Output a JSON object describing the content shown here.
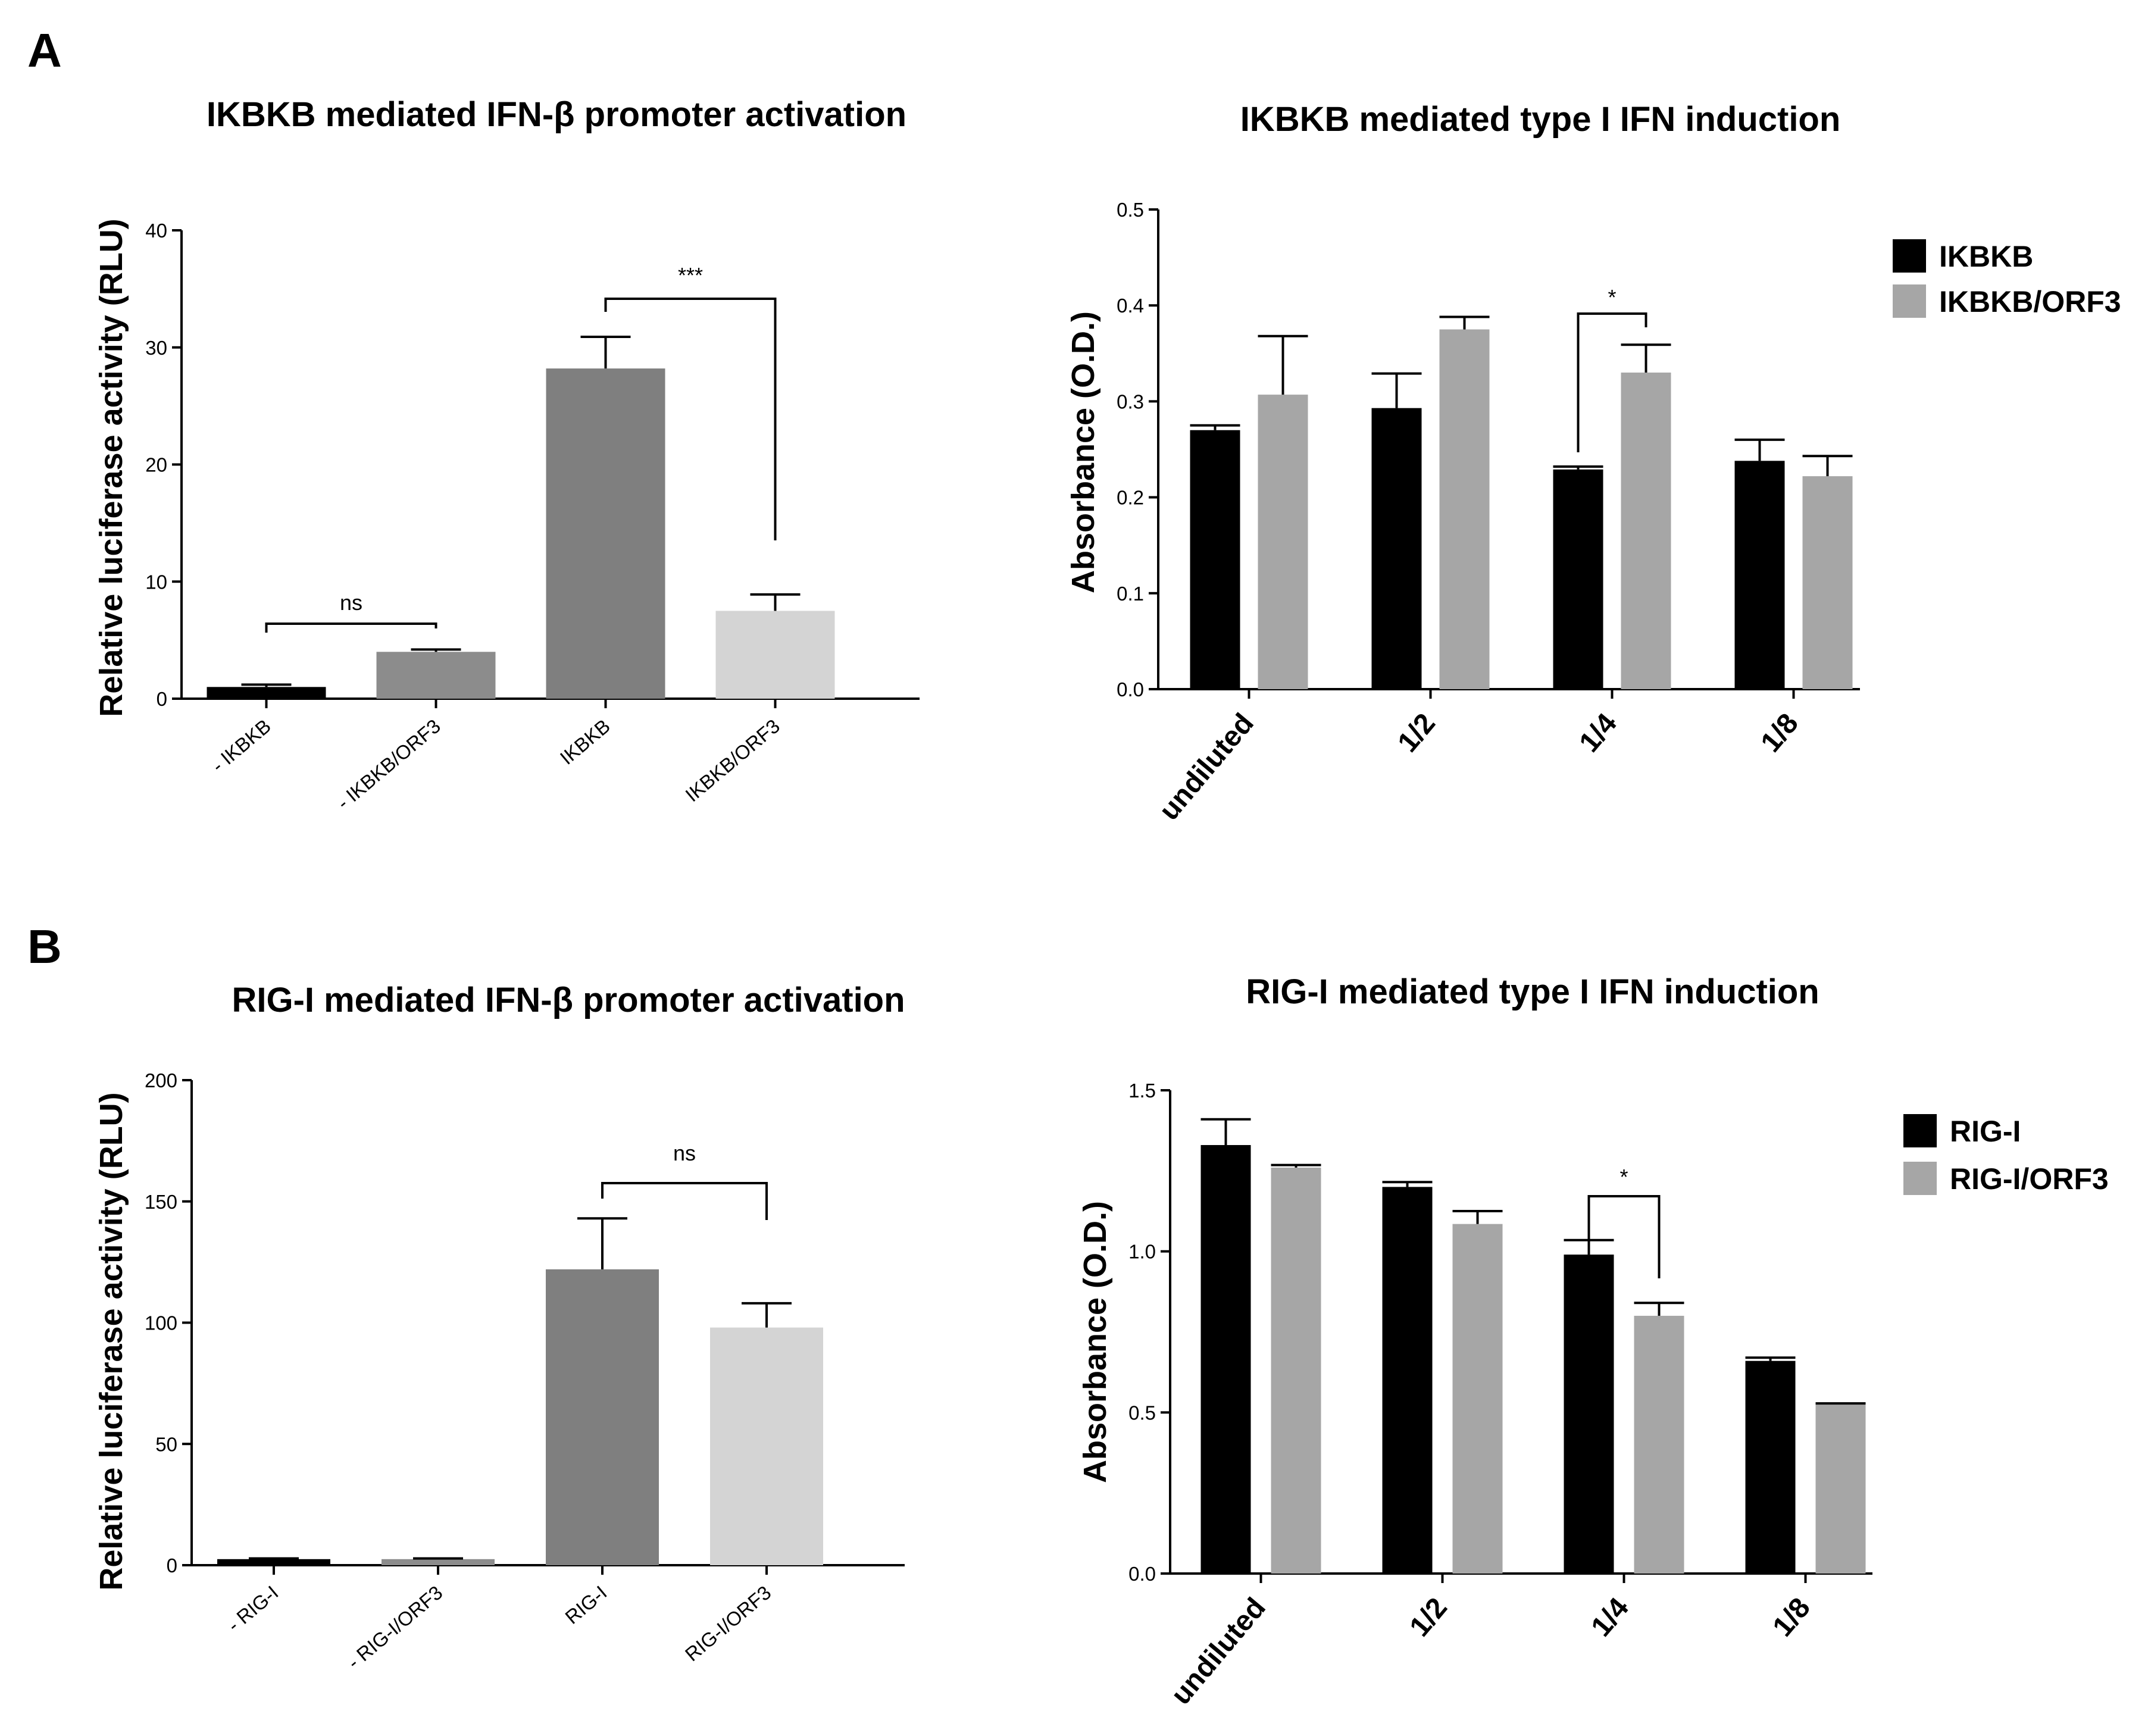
{
  "panels": {
    "a": "A",
    "b": "B"
  },
  "chart_data": [
    {
      "type": "bar",
      "title": "IKBKB mediated IFN-β promoter activation",
      "xlabel": "",
      "ylabel": "Relative luciferase activity (RLU)",
      "ylim": [
        0,
        40
      ],
      "yticks": [
        0,
        10,
        20,
        30,
        40
      ],
      "categories": [
        "- IKBKB",
        "- IKBKB/ORF3",
        "IKBKB",
        "IKBKB/ORF3"
      ],
      "values": [
        1.0,
        4.0,
        28.2,
        7.5
      ],
      "errors": [
        0.2,
        0.2,
        2.7,
        1.4
      ],
      "colors": [
        "#000000",
        "#8c8c8c",
        "#7f7f7f",
        "#d4d4d4"
      ],
      "significance": [
        {
          "label": "ns",
          "from": 0,
          "to": 1
        },
        {
          "label": "***",
          "from": 2,
          "to": 3
        }
      ]
    },
    {
      "type": "bar",
      "title": "IKBKB mediated type I IFN induction",
      "xlabel": "",
      "ylabel": "Absorbance (O.D.)",
      "ylim": [
        0,
        0.5
      ],
      "yticks": [
        "0.0",
        "0.1",
        "0.2",
        "0.3",
        "0.4",
        "0.5"
      ],
      "categories": [
        "undiluted",
        "1/2",
        "1/4",
        "1/8"
      ],
      "series": [
        {
          "name": "IKBKB",
          "color": "#000000",
          "values": [
            0.27,
            0.293,
            0.229,
            0.238
          ],
          "errors": [
            0.005,
            0.036,
            0.003,
            0.022
          ]
        },
        {
          "name": "IKBKB/ORF3",
          "color": "#a6a6a6",
          "values": [
            0.307,
            0.375,
            0.33,
            0.222
          ],
          "errors": [
            0.061,
            0.013,
            0.029,
            0.021
          ]
        }
      ],
      "legend": "right",
      "significance": [
        {
          "label": "*",
          "category": 2
        }
      ]
    },
    {
      "type": "bar",
      "title": "RIG-I mediated IFN-β promoter activation",
      "xlabel": "",
      "ylabel": "Relative luciferase activity (RLU)",
      "ylim": [
        0,
        200
      ],
      "yticks": [
        0,
        50,
        100,
        150,
        200
      ],
      "categories": [
        "- RIG-I",
        "- RIG-I/ORF3",
        "RIG-I",
        "RIG-I/ORF3"
      ],
      "values": [
        2.5,
        2.5,
        122,
        98
      ],
      "errors": [
        0.3,
        0.3,
        21,
        10
      ],
      "colors": [
        "#000000",
        "#8c8c8c",
        "#7f7f7f",
        "#d4d4d4"
      ],
      "significance": [
        {
          "label": "ns",
          "from": 2,
          "to": 3
        }
      ]
    },
    {
      "type": "bar",
      "title": "RIG-I mediated type I IFN induction",
      "xlabel": "",
      "ylabel": "Absorbance (O.D.)",
      "ylim": [
        0,
        1.5
      ],
      "yticks": [
        "0.0",
        "0.5",
        "1.0",
        "1.5"
      ],
      "categories": [
        "undiluted",
        "1/2",
        "1/4",
        "1/8"
      ],
      "series": [
        {
          "name": "RIG-I",
          "color": "#000000",
          "values": [
            1.33,
            1.2,
            0.99,
            0.66
          ],
          "errors": [
            0.08,
            0.015,
            0.045,
            0.01
          ]
        },
        {
          "name": "RIG-I/ORF3",
          "color": "#a6a6a6",
          "values": [
            1.26,
            1.085,
            0.8,
            0.525
          ],
          "errors": [
            0.008,
            0.04,
            0.04,
            0.003
          ]
        }
      ],
      "legend": "right",
      "significance": [
        {
          "label": "*",
          "category": 2
        }
      ]
    }
  ]
}
